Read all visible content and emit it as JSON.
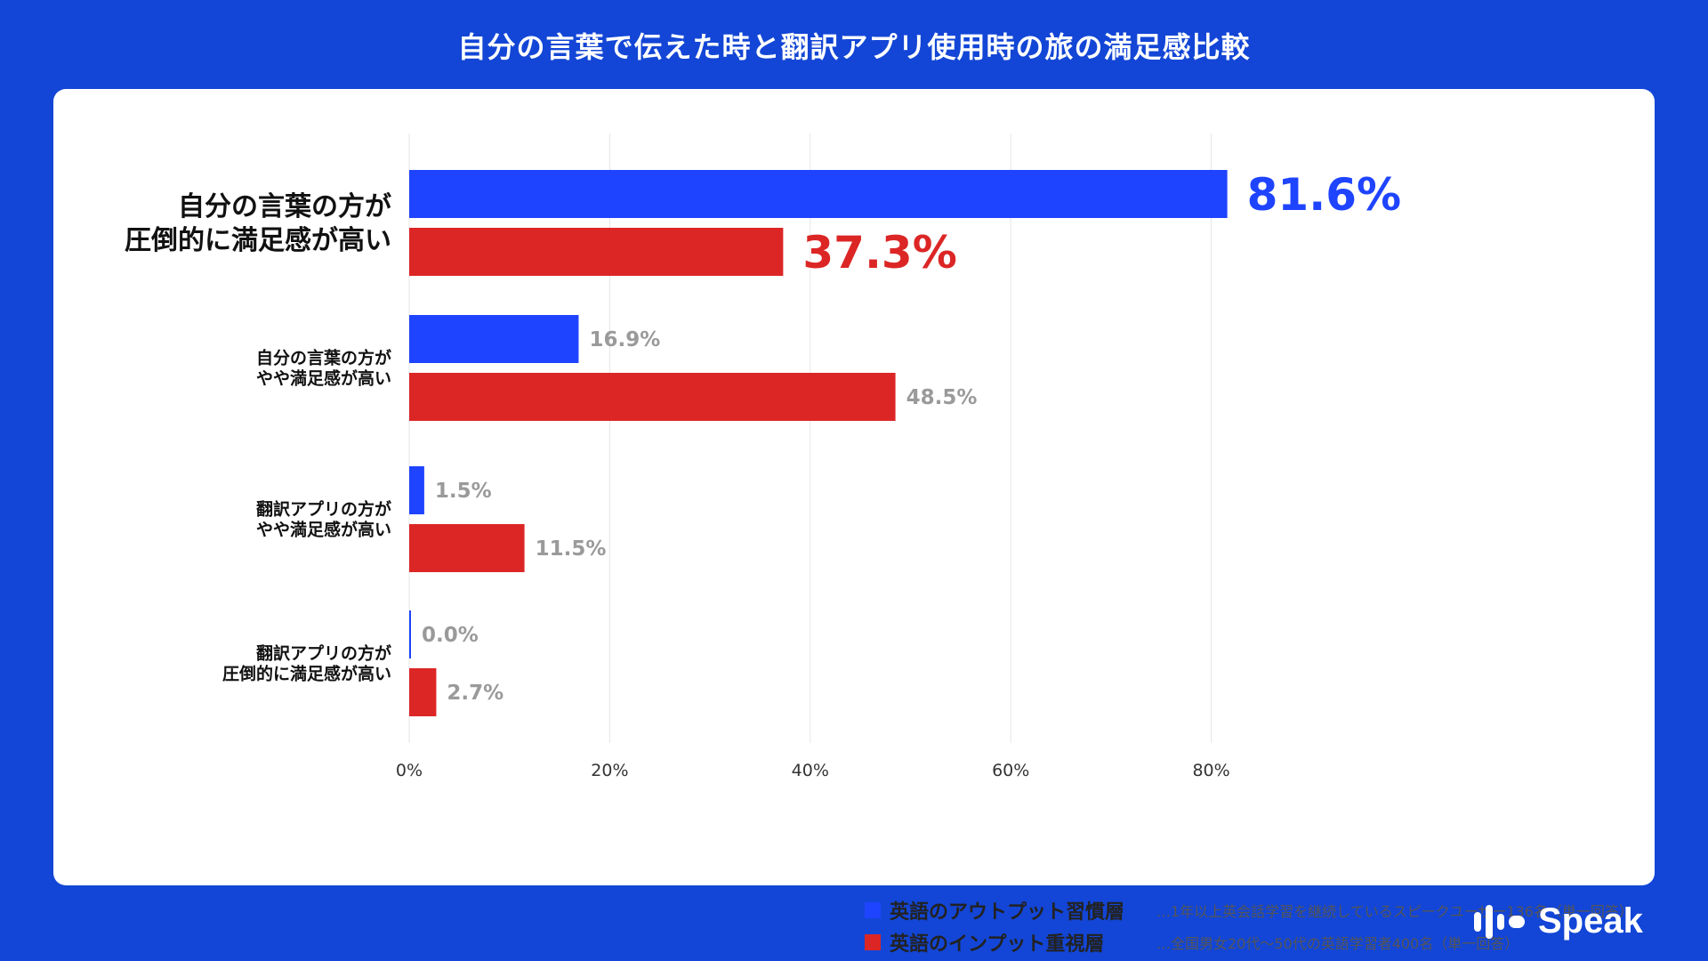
{
  "title": "自分の言葉で伝えた時と翻訳アプリ使用時の旅の満足感比較",
  "colors": {
    "background": "#1346d6",
    "output": "#1f44ff",
    "input": "#dc2626",
    "value_gray": "#9a9a9a"
  },
  "chart_data": {
    "type": "bar",
    "orientation": "horizontal",
    "title": "自分の言葉で伝えた時と翻訳アプリ使用時の旅の満足感比較",
    "categories": [
      "自分の言葉の方が\n圧倒的に満足感が高い",
      "自分の言葉の方が\nやや満足感が高い",
      "翻訳アプリの方が\nやや満足感が高い",
      "翻訳アプリの方が\n圧倒的に満足感が高い"
    ],
    "series": [
      {
        "name": "英語のアウトプット習慣層",
        "note": "…1年以上英会話学習を継続しているスピークユーザー136名（単一回答）",
        "values": [
          81.6,
          16.9,
          1.5,
          0.0
        ],
        "labels": [
          "81.6%",
          "16.9%",
          "1.5%",
          "0.0%"
        ]
      },
      {
        "name": "英語のインプット重視層",
        "note": "…全国男女20代〜50代の英語学習者400名（単一回答）",
        "values": [
          37.3,
          48.5,
          11.5,
          2.7
        ],
        "labels": [
          "37.3%",
          "48.5%",
          "11.5%",
          "2.7%"
        ]
      }
    ],
    "xlim": [
      0,
      90
    ],
    "xticks": [
      0,
      20,
      40,
      60,
      80
    ],
    "xtick_labels": [
      "0%",
      "20%",
      "40%",
      "60%",
      "80%"
    ],
    "highlight_category": 0,
    "grid": true
  },
  "logo": {
    "text": "Speak",
    "icon": "speak-sound-bars-icon"
  }
}
